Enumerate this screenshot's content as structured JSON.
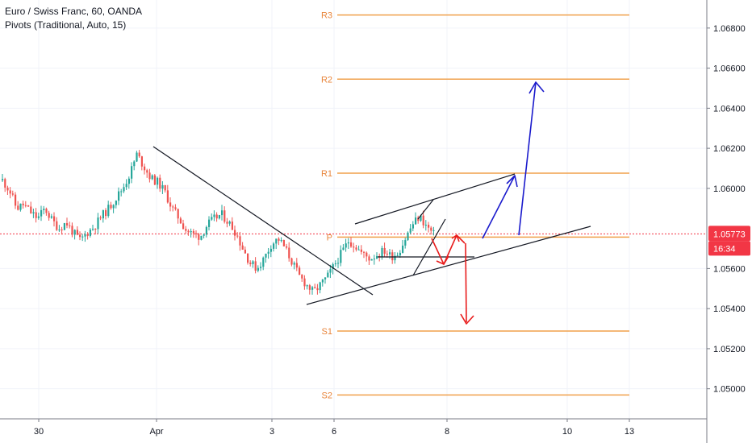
{
  "legend": {
    "symbol_line": "Euro / Swiss Franc, 60, OANDA",
    "indicator_line": "Pivots (Traditional, Auto, 15)"
  },
  "colors": {
    "up": "#26a69a",
    "down": "#ef5350",
    "pivot": "#f0a04b",
    "pivot_label": "#e8843a",
    "last_price": "#f23645",
    "grid": "#f0f3fa",
    "axis_border": "#787b86",
    "trendline": "#131722",
    "bull_arrow": "#1a1acc",
    "bear_arrow": "#e81c1c"
  },
  "chart_data": {
    "type": "candlestick",
    "symbol": "Euro / Swiss Franc, 60, OANDA",
    "indicator": "Pivots (Traditional, Auto, 15)",
    "x_ticks": [
      "30",
      "Apr",
      "3",
      "6",
      "8",
      "10",
      "13"
    ],
    "y_ticks": [
      "1.06800",
      "1.06600",
      "1.06400",
      "1.06200",
      "1.06000",
      "1.05600",
      "1.05400",
      "1.05200",
      "1.05000"
    ],
    "ylim": [
      1.0485,
      1.0694
    ],
    "pivots": [
      {
        "name": "R3",
        "value": 1.06865
      },
      {
        "name": "R2",
        "value": 1.06545
      },
      {
        "name": "R1",
        "value": 1.06076
      },
      {
        "name": "P",
        "value": 1.05757
      },
      {
        "name": "S1",
        "value": 1.05288
      },
      {
        "name": "S2",
        "value": 1.04969
      }
    ],
    "last_price": "1.05773",
    "countdown": "16:34",
    "grid": true,
    "series_trend": [
      1.0604,
      1.0599,
      1.059,
      1.0592,
      1.0588,
      1.0585,
      1.059,
      1.0584,
      1.058,
      1.0583,
      1.0578,
      1.0574,
      1.0578,
      1.0581,
      1.0586,
      1.059,
      1.0595,
      1.06,
      1.0607,
      1.0617,
      1.0611,
      1.0605,
      1.0603,
      1.0598,
      1.059,
      1.0585,
      1.0579,
      1.0577,
      1.0576,
      1.0582,
      1.0585,
      1.0587,
      1.0583,
      1.0578,
      1.057,
      1.0563,
      1.056,
      1.0565,
      1.0572,
      1.0575,
      1.057,
      1.0563,
      1.0556,
      1.0552,
      1.0548,
      1.0552,
      1.0556,
      1.0562,
      1.0568,
      1.0574,
      1.0571,
      1.0567,
      1.0565,
      1.0567,
      1.0569,
      1.0566,
      1.0568,
      1.0575,
      1.0582,
      1.0586,
      1.0581,
      1.0577
    ]
  }
}
